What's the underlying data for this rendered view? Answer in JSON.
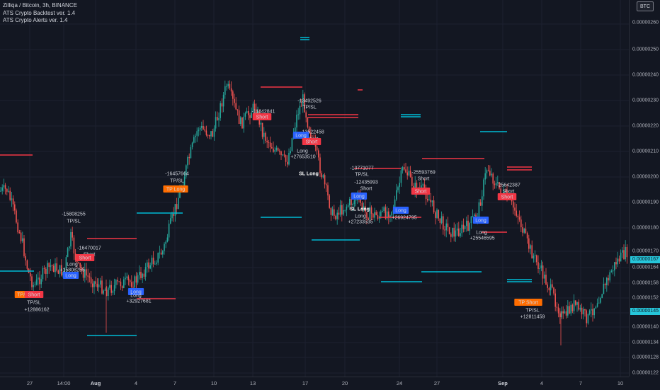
{
  "header": {
    "symbol_title": "Zilliqa / Bitcoin, 3h, BINANCE",
    "indicators": [
      "ATS Crypto Backtest ver. 1.4",
      "ATS Crypto Alerts ver. 1.4"
    ]
  },
  "currency_button": "BTC",
  "price_axis": {
    "ticks": [
      "0.00000260",
      "0.00000250",
      "0.00000240",
      "0.00000230",
      "0.00000220",
      "0.00000210",
      "0.00000200",
      "0.00000190",
      "0.00000180",
      "0.00000170",
      "0.00000164",
      "0.00000158",
      "0.00000152",
      "0.00000146",
      "0.00000140",
      "0.00000134",
      "0.00000128",
      "0.00000122"
    ],
    "current_price": "0.00000167",
    "marker_price": "0.00000145"
  },
  "time_axis": {
    "ticks": [
      "27",
      "14:00",
      "Aug",
      "4",
      "7",
      "10",
      "13",
      "17",
      "20",
      "24",
      "27",
      "Sep",
      "4",
      "7",
      "10"
    ],
    "bold": [
      "Aug",
      "Sep"
    ]
  },
  "colors": {
    "background": "#131722",
    "up": "#26a69a",
    "down": "#ef5350",
    "long_line": "#00bcd4",
    "short_line": "#f23645",
    "long_tag": "#2962ff",
    "short_tag": "#f23645",
    "tpsl_tag": "#ff6d00"
  },
  "annotations": [
    {
      "text": "TP/SL",
      "kind": "tpsl"
    },
    {
      "text": "Short",
      "kind": "short"
    },
    {
      "text": "TP/SL",
      "kind": "plain"
    },
    {
      "text": "+12886162",
      "kind": "plain"
    },
    {
      "text": "-15808255",
      "kind": "plain"
    },
    {
      "text": "TP/SL",
      "kind": "plain"
    },
    {
      "text": "-16470017",
      "kind": "plain"
    },
    {
      "text": "Short",
      "kind": "plain"
    },
    {
      "text": "Short",
      "kind": "short"
    },
    {
      "text": "Long",
      "kind": "plain"
    },
    {
      "text": "+15808255",
      "kind": "plain"
    },
    {
      "text": "Long",
      "kind": "long"
    },
    {
      "text": "Long",
      "kind": "long"
    },
    {
      "text": "Long",
      "kind": "plain"
    },
    {
      "text": "+32927681",
      "kind": "plain"
    },
    {
      "text": "-16457664",
      "kind": "plain"
    },
    {
      "text": "TP/SL",
      "kind": "plain"
    },
    {
      "text": "TP Long",
      "kind": "tpsl"
    },
    {
      "text": "-11442841",
      "kind": "plain"
    },
    {
      "text": "Short",
      "kind": "short"
    },
    {
      "text": "-13492526",
      "kind": "plain"
    },
    {
      "text": "TP/SL",
      "kind": "plain"
    },
    {
      "text": "-13522458",
      "kind": "plain"
    },
    {
      "text": "Short",
      "kind": "plain"
    },
    {
      "text": "Long",
      "kind": "long"
    },
    {
      "text": "Short",
      "kind": "short"
    },
    {
      "text": "Long",
      "kind": "plain"
    },
    {
      "text": "+27653510",
      "kind": "plain"
    },
    {
      "text": "SL Long",
      "kind": "plainbold"
    },
    {
      "text": "-13771077",
      "kind": "plain"
    },
    {
      "text": "TP/SL",
      "kind": "plain"
    },
    {
      "text": "-12435993",
      "kind": "plain"
    },
    {
      "text": "Short",
      "kind": "plain"
    },
    {
      "text": "Long",
      "kind": "long"
    },
    {
      "text": "SL Long",
      "kind": "plainbold"
    },
    {
      "text": "Long",
      "kind": "plain"
    },
    {
      "text": "+27233535",
      "kind": "plain"
    },
    {
      "text": "-25593769",
      "kind": "plain"
    },
    {
      "text": "Short",
      "kind": "plain"
    },
    {
      "text": "Long",
      "kind": "long"
    },
    {
      "text": "+26924795",
      "kind": "plain"
    },
    {
      "text": "Short",
      "kind": "short"
    },
    {
      "text": "Long",
      "kind": "long"
    },
    {
      "text": "Long",
      "kind": "plain"
    },
    {
      "text": "+25546595",
      "kind": "plain"
    },
    {
      "text": "-25642387",
      "kind": "plain"
    },
    {
      "text": "Short",
      "kind": "plain"
    },
    {
      "text": "Short",
      "kind": "short"
    },
    {
      "text": "TP Short",
      "kind": "tpsl"
    },
    {
      "text": "TP/SL",
      "kind": "plain"
    },
    {
      "text": "+12811459",
      "kind": "plain"
    }
  ]
}
